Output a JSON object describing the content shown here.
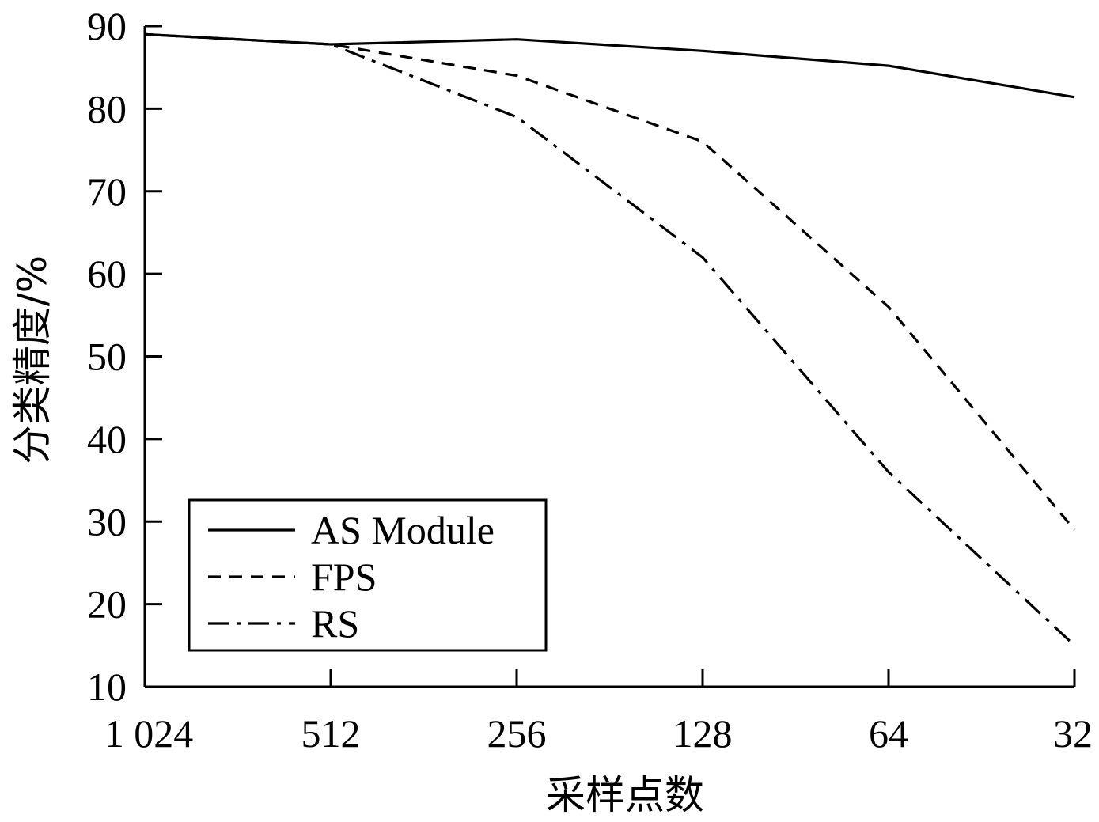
{
  "chart_data": {
    "type": "line",
    "x": [
      "1 024",
      "512",
      "256",
      "128",
      "64",
      "32"
    ],
    "xlabel": "采样点数",
    "ylabel": "分类精度/%",
    "ylim": [
      10,
      90
    ],
    "yticks": [
      "10",
      "20",
      "30",
      "40",
      "50",
      "60",
      "70",
      "80",
      "90"
    ],
    "grid": false,
    "legend_position": "bottom-left",
    "series": [
      {
        "name": "AS Module",
        "dash": "solid",
        "values": [
          89.0,
          87.8,
          88.4,
          87.0,
          85.2,
          81.4
        ]
      },
      {
        "name": "FPS",
        "dash": "dashed",
        "values": [
          89.0,
          87.8,
          84.0,
          76.0,
          56.0,
          29.0
        ]
      },
      {
        "name": "RS",
        "dash": "dashdot",
        "values": [
          89.0,
          87.8,
          79.0,
          62.0,
          36.0,
          15.0
        ]
      }
    ],
    "color": "#000000"
  }
}
